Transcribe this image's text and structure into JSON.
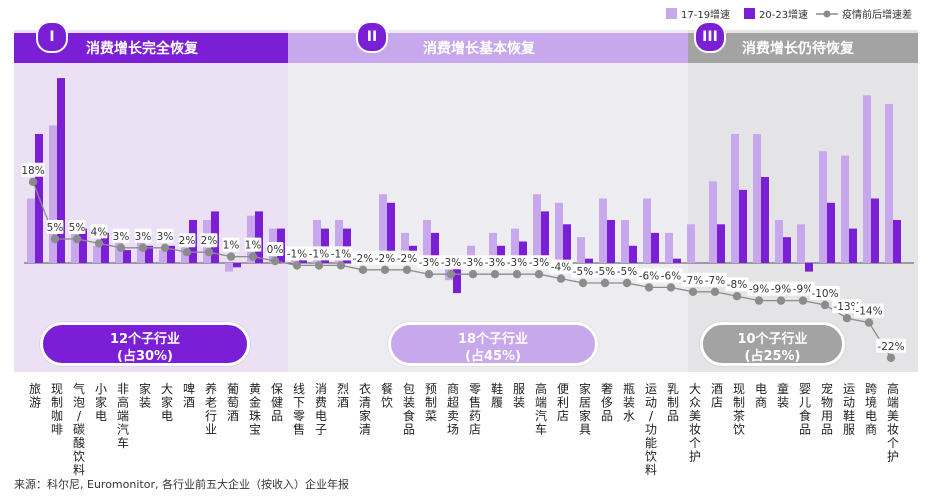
{
  "legend": {
    "series1": "17-19增速",
    "series2": "20-23增速",
    "series3": "疫情前后增速差"
  },
  "phases": [
    {
      "numeral": "I",
      "title": "消费增长完全恢复",
      "count": "12个子行业",
      "share": "(占30%)"
    },
    {
      "numeral": "II",
      "title": "消费增长基本恢复",
      "count": "18个子行业",
      "share": "(占45%)"
    },
    {
      "numeral": "III",
      "title": "消费增长仍待恢复",
      "count": "10个子行业",
      "share": "(占25%)"
    }
  ],
  "source": "来源：科尔尼, Euromonitor, 各行业前五大企业（按收入）企业年报",
  "colors": {
    "series1": "#c8a8ec",
    "series2": "#7a1fd6",
    "line": "#8c8c8c",
    "phase1_bg": "#ebe0f4",
    "phase2_bg": "#ececf1",
    "phase3_bg": "#e4e4e6",
    "phase1_header": "#7a1fd6",
    "phase2_header": "#c8a8ec",
    "phase3_header": "#a3a3a3"
  },
  "chart_data": {
    "type": "bar",
    "categories": [
      "旅游",
      "现制咖啡",
      "气泡/碳酸饮料",
      "小家电",
      "非高端汽车",
      "家装",
      "大家电",
      "啤酒",
      "养老行业",
      "葡萄酒",
      "黄金珠宝",
      "保健品",
      "线下零售",
      "消费电子",
      "烈酒",
      "衣清家清",
      "餐饮",
      "包装食品",
      "预制菜",
      "商超卖场",
      "零售药店",
      "鞋履",
      "服装",
      "高端汽车",
      "便利店",
      "家居家具",
      "奢侈品",
      "瓶装水",
      "运动/功能饮料",
      "乳制品",
      "大众美妆个护",
      "酒店",
      "现制茶饮",
      "电商",
      "童装",
      "婴儿食品",
      "宠物用品",
      "运动鞋服",
      "跨境电商",
      "高端美妆个护"
    ],
    "series": [
      {
        "name": "17-19增速",
        "values": [
          15,
          32,
          10,
          4,
          5,
          5,
          3,
          5,
          10,
          -2,
          11,
          8,
          1,
          10,
          10,
          2,
          16,
          7,
          10,
          -4,
          4,
          7,
          8,
          16,
          14,
          6,
          15,
          10,
          15,
          7,
          9,
          19,
          30,
          30,
          10,
          9,
          26,
          25,
          39,
          37
        ]
      },
      {
        "name": "20-23增速",
        "values": [
          30,
          43,
          8,
          7,
          3,
          4,
          4,
          10,
          12,
          -1,
          12,
          8,
          1,
          8,
          8,
          2,
          14,
          4,
          7,
          -7,
          1,
          4,
          5,
          12,
          9,
          1,
          10,
          4,
          7,
          1,
          0,
          9,
          17,
          20,
          6,
          -2,
          14,
          8,
          15,
          10
        ]
      },
      {
        "name": "疫情前后增速差",
        "values": [
          18,
          5,
          5,
          4,
          3,
          3,
          3,
          2,
          2,
          1,
          1,
          0,
          -1,
          -1,
          -1,
          -2,
          -2,
          -2,
          -3,
          -3,
          -3,
          -3,
          -3,
          -3,
          -4,
          -5,
          -5,
          -5,
          -6,
          -6,
          -7,
          -7,
          -8,
          -9,
          -9,
          -9,
          -10,
          -13,
          -14,
          -22
        ]
      }
    ],
    "line_labels": [
      "18%",
      "5%",
      "5%",
      "4%",
      "3%",
      "3%",
      "3%",
      "2%",
      "2%",
      "1%",
      "1%",
      "0%",
      "-1%",
      "-1%",
      "-1%",
      "-2%",
      "-2%",
      "-2%",
      "-3%",
      "-3%",
      "-3%",
      "-3%",
      "-3%",
      "-3%",
      "-4%",
      "-5%",
      "-5%",
      "-5%",
      "-6%",
      "-6%",
      "-7%",
      "-7%",
      "-8%",
      "-9%",
      "-9%",
      "-9%",
      "-10%",
      "-13%",
      "-14%",
      "-22%"
    ],
    "title": "",
    "xlabel": "",
    "ylabel": ""
  }
}
